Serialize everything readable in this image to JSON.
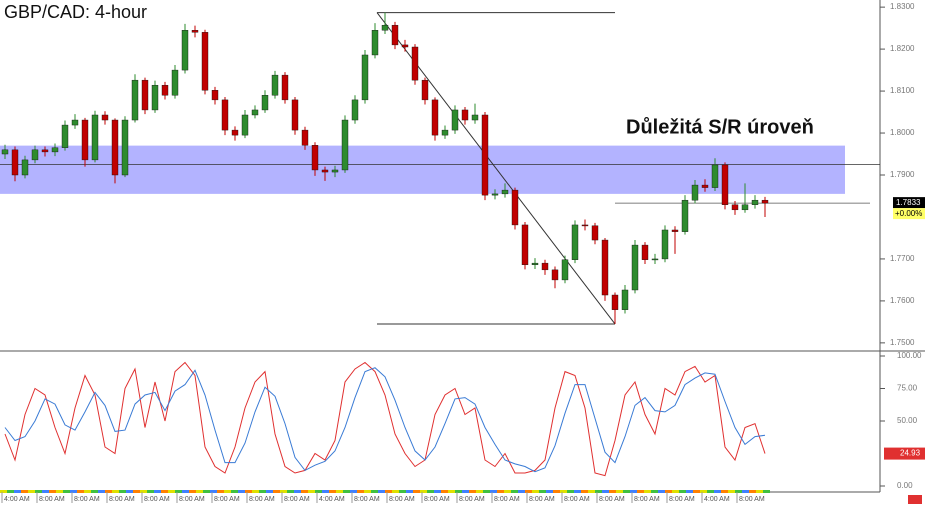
{
  "chart_data": [
    {
      "type": "candlestick",
      "title": "GBP/CAD: 4-hour",
      "annotation": "Důležitá S/R úroveň",
      "up_color": "#2e8b2e",
      "down_color": "#c00000",
      "ylim": [
        1.7483,
        1.8317
      ],
      "yticks": [
        {
          "value": 1.83,
          "label": "1.8300"
        },
        {
          "value": 1.82,
          "label": "1.8200"
        },
        {
          "value": 1.81,
          "label": "1.8100"
        },
        {
          "value": 1.8,
          "label": "1.8000"
        },
        {
          "value": 1.79,
          "label": "1.7900"
        },
        {
          "value": 1.77,
          "label": "1.7700"
        },
        {
          "value": 1.76,
          "label": "1.7600"
        },
        {
          "value": 1.75,
          "label": "1.7500"
        }
      ],
      "change_label": "+0.00%",
      "sr_zone": [
        1.7855,
        1.797
      ],
      "sr_line": 1.7925,
      "zone_color": "#9999ff",
      "swing_high": {
        "index": 38,
        "price": 1.8287
      },
      "swing_low": {
        "index": 61,
        "price": 1.7545
      },
      "candles": {
        "open": [
          1.795,
          1.796,
          1.79,
          1.7936,
          1.796,
          1.7955,
          1.7965,
          1.8019,
          1.8031,
          1.7936,
          1.8043,
          1.8031,
          1.79,
          1.8031,
          1.8126,
          1.8055,
          1.8114,
          1.809,
          1.815,
          1.8245,
          1.824,
          1.8102,
          1.8079,
          1.8007,
          1.7995,
          1.8043,
          1.8055,
          1.809,
          1.8138,
          1.8079,
          1.8007,
          1.7971,
          1.7912,
          1.7907,
          1.7912,
          1.8031,
          1.8079,
          1.8186,
          1.8245,
          1.8257,
          1.821,
          1.8205,
          1.8126,
          1.8079,
          1.7995,
          1.8007,
          1.8055,
          1.8031,
          1.8043,
          1.7852,
          1.7855,
          1.7864,
          1.7781,
          1.7686,
          1.769,
          1.7674,
          1.765,
          1.7698,
          1.7781,
          1.7779,
          1.7745,
          1.7614,
          1.7579,
          1.7626,
          1.7733,
          1.7698,
          1.77,
          1.7769,
          1.7765,
          1.784,
          1.7876,
          1.787,
          1.7924,
          1.7829,
          1.7817,
          1.7829,
          1.784
        ],
        "high": [
          1.7972,
          1.7968,
          1.7946,
          1.797,
          1.7968,
          1.7975,
          1.803,
          1.8045,
          1.8036,
          1.8053,
          1.8052,
          1.8035,
          1.804,
          1.814,
          1.8132,
          1.8125,
          1.8122,
          1.8162,
          1.826,
          1.8256,
          1.8246,
          1.811,
          1.8086,
          1.8016,
          1.8055,
          1.8066,
          1.8102,
          1.8148,
          1.8145,
          1.8086,
          1.8015,
          1.7978,
          1.792,
          1.7922,
          1.8042,
          1.809,
          1.8198,
          1.8262,
          1.8287,
          1.8265,
          1.8222,
          1.8212,
          1.8132,
          1.8085,
          1.8018,
          1.8066,
          1.8062,
          1.807,
          1.805,
          1.7866,
          1.788,
          1.787,
          1.7788,
          1.7702,
          1.7698,
          1.7682,
          1.7708,
          1.7792,
          1.7794,
          1.7786,
          1.775,
          1.762,
          1.7638,
          1.7745,
          1.774,
          1.7712,
          1.778,
          1.7778,
          1.7852,
          1.7888,
          1.789,
          1.794,
          1.793,
          1.7838,
          1.788,
          1.7852,
          1.7848
        ],
        "low": [
          1.7938,
          1.7885,
          1.7892,
          1.7928,
          1.7944,
          1.7945,
          1.7958,
          1.801,
          1.792,
          1.793,
          1.802,
          1.788,
          1.7895,
          1.8025,
          1.8045,
          1.8048,
          1.808,
          1.8082,
          1.8142,
          1.8228,
          1.8092,
          1.8068,
          1.7995,
          1.7982,
          1.7988,
          1.8035,
          1.8048,
          1.8082,
          1.807,
          1.7996,
          1.796,
          1.7898,
          1.7886,
          1.7895,
          1.7905,
          1.8022,
          1.807,
          1.8178,
          1.8236,
          1.82,
          1.8194,
          1.8115,
          1.8068,
          1.7982,
          1.7986,
          1.7998,
          1.802,
          1.8022,
          1.784,
          1.7842,
          1.7846,
          1.777,
          1.7675,
          1.7676,
          1.7662,
          1.763,
          1.7642,
          1.769,
          1.7768,
          1.7735,
          1.76,
          1.7545,
          1.757,
          1.7618,
          1.7688,
          1.7688,
          1.7692,
          1.7712,
          1.7758,
          1.7832,
          1.786,
          1.7862,
          1.7818,
          1.7805,
          1.781,
          1.782,
          1.78
        ],
        "close": [
          1.796,
          1.79,
          1.7936,
          1.796,
          1.7955,
          1.7965,
          1.8019,
          1.8031,
          1.7936,
          1.8043,
          1.8031,
          1.79,
          1.8031,
          1.8126,
          1.8055,
          1.8114,
          1.809,
          1.815,
          1.8245,
          1.824,
          1.8102,
          1.8079,
          1.8007,
          1.7995,
          1.8043,
          1.8055,
          1.809,
          1.8138,
          1.8079,
          1.8007,
          1.7971,
          1.7912,
          1.7907,
          1.7912,
          1.8031,
          1.8079,
          1.8186,
          1.8245,
          1.8257,
          1.821,
          1.8205,
          1.8126,
          1.8079,
          1.7995,
          1.8007,
          1.8055,
          1.8031,
          1.8043,
          1.7852,
          1.7855,
          1.7864,
          1.7781,
          1.7686,
          1.769,
          1.7674,
          1.765,
          1.7698,
          1.7781,
          1.7779,
          1.7745,
          1.7614,
          1.7579,
          1.7626,
          1.7733,
          1.7698,
          1.77,
          1.7769,
          1.7765,
          1.784,
          1.7876,
          1.787,
          1.7924,
          1.7829,
          1.7817,
          1.7829,
          1.784,
          1.7833
        ]
      }
    },
    {
      "type": "line",
      "ylim": [
        0,
        100
      ],
      "yticks": [
        {
          "value": 100,
          "label": "100.00"
        },
        {
          "value": 75,
          "label": "75.00"
        },
        {
          "value": 50,
          "label": "50.00"
        },
        {
          "value": 0,
          "label": "0.00"
        }
      ],
      "x_labels": [
        "4:00 AM",
        "8:00 AM",
        "8:00 AM",
        "8:00 AM",
        "8:00 AM",
        "8:00 AM",
        "8:00 AM",
        "8:00 AM",
        "8:00 AM",
        "4:00 AM",
        "8:00 AM",
        "8:00 AM",
        "8:00 AM",
        "8:00 AM",
        "8:00 AM",
        "8:00 AM",
        "8:00 AM",
        "8:00 AM",
        "8:00 AM",
        "8:00 AM",
        "4:00 AM",
        "8:00 AM"
      ],
      "series": [
        {
          "color": "#e03030",
          "values": [
            40,
            20,
            55,
            75,
            70,
            45,
            25,
            60,
            85,
            70,
            30,
            25,
            75,
            90,
            45,
            80,
            50,
            88,
            95,
            85,
            30,
            15,
            10,
            30,
            60,
            80,
            88,
            40,
            15,
            10,
            12,
            25,
            20,
            35,
            80,
            90,
            95,
            88,
            70,
            40,
            25,
            15,
            20,
            55,
            70,
            75,
            55,
            60,
            20,
            15,
            25,
            10,
            10,
            12,
            20,
            60,
            88,
            85,
            60,
            10,
            8,
            35,
            70,
            80,
            55,
            40,
            75,
            70,
            88,
            92,
            80,
            85,
            30,
            20,
            45,
            48,
            24.93
          ]
        },
        {
          "color": "#3a7bd5",
          "values": [
            45,
            35,
            38,
            50,
            67,
            63,
            47,
            43,
            57,
            72,
            62,
            42,
            43,
            63,
            70,
            72,
            58,
            73,
            78,
            89,
            70,
            43,
            18,
            18,
            33,
            57,
            76,
            69,
            48,
            22,
            12,
            16,
            19,
            27,
            45,
            68,
            88,
            91,
            84,
            66,
            45,
            27,
            20,
            30,
            48,
            67,
            68,
            63,
            45,
            32,
            20,
            17,
            15,
            11,
            14,
            31,
            56,
            78,
            78,
            52,
            26,
            18,
            38,
            62,
            68,
            58,
            57,
            62,
            78,
            83,
            87,
            86,
            65,
            45,
            32,
            38,
            39
          ]
        }
      ]
    }
  ]
}
